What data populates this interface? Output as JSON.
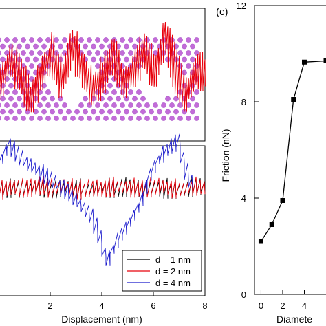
{
  "chart_data": [
    {
      "type": "line",
      "panel": "top-left",
      "xlim": [
        0,
        8
      ],
      "structure_colors": {
        "bonds": "#b060cc",
        "atoms": "#c26cd8"
      },
      "series": [
        {
          "color": "#e8000b",
          "x": [
            0.0,
            0.4,
            0.8,
            1.2,
            1.6,
            2.0,
            2.4,
            2.8,
            3.2,
            3.6,
            4.0,
            4.4,
            4.8,
            5.2,
            5.6,
            6.0,
            6.4,
            6.8,
            7.2,
            7.6,
            8.0
          ],
          "y": [
            0.45,
            0.7,
            0.55,
            0.3,
            0.55,
            0.75,
            0.5,
            0.85,
            0.6,
            0.4,
            0.55,
            0.75,
            0.45,
            0.6,
            0.8,
            0.55,
            0.95,
            0.6,
            0.35,
            0.6,
            0.55
          ]
        }
      ]
    },
    {
      "type": "line",
      "panel": "bottom-left",
      "xlabel": "Displacement (nm)",
      "xlim": [
        0,
        8
      ],
      "xticks": [
        "2",
        "4",
        "6",
        "8"
      ],
      "legend_position": "bottom-right",
      "series": [
        {
          "name": "d = 1 nm",
          "color": "#000000",
          "x": [
            0.0,
            0.5,
            1.0,
            1.5,
            2.0,
            2.5,
            3.0,
            3.5,
            4.0,
            4.5,
            5.0,
            5.5,
            6.0,
            6.5,
            7.0,
            7.5,
            8.0
          ],
          "y": [
            0.3,
            0.32,
            0.31,
            0.33,
            0.3,
            0.32,
            0.31,
            0.3,
            0.32,
            0.31,
            0.33,
            0.3,
            0.32,
            0.31,
            0.3,
            0.33,
            0.32
          ]
        },
        {
          "name": "d = 2 nm",
          "color": "#e8000b",
          "x": [
            0.0,
            0.5,
            1.0,
            1.5,
            2.0,
            2.5,
            3.0,
            3.5,
            4.0,
            4.5,
            5.0,
            5.5,
            6.0,
            6.5,
            7.0,
            7.5,
            8.0
          ],
          "y": [
            0.3,
            0.33,
            0.31,
            0.34,
            0.31,
            0.33,
            0.3,
            0.32,
            0.31,
            0.33,
            0.32,
            0.31,
            0.33,
            0.32,
            0.3,
            0.33,
            0.31
          ]
        },
        {
          "name": "d = 4 nm",
          "color": "#1a1acc",
          "x": [
            0.0,
            0.3,
            0.6,
            1.0,
            1.5,
            2.0,
            2.5,
            3.0,
            3.5,
            3.8,
            4.1,
            4.5,
            5.0,
            5.4,
            5.8,
            6.2,
            6.6,
            6.9,
            7.1,
            7.4
          ],
          "y": [
            0.55,
            0.68,
            0.6,
            0.52,
            0.45,
            0.38,
            0.3,
            0.2,
            0.1,
            -0.05,
            -0.28,
            -0.1,
            0.05,
            0.2,
            0.45,
            0.58,
            0.66,
            0.7,
            0.5,
            0.35
          ]
        }
      ]
    },
    {
      "type": "line",
      "panel": "right",
      "label": "(c)",
      "xlabel": "Diamete",
      "ylabel": "Friction (nN)",
      "ylim": [
        0,
        12
      ],
      "yticks": [
        "0",
        "4",
        "8",
        "12"
      ],
      "xticks": [
        "0",
        "2",
        "4"
      ],
      "xlim": [
        -0.6,
        6.0
      ],
      "series": [
        {
          "color": "#000000",
          "marker": "square",
          "x": [
            0,
            1,
            2,
            3,
            4,
            6
          ],
          "y": [
            2.2,
            2.9,
            3.9,
            8.1,
            9.65,
            9.7
          ]
        }
      ]
    }
  ]
}
